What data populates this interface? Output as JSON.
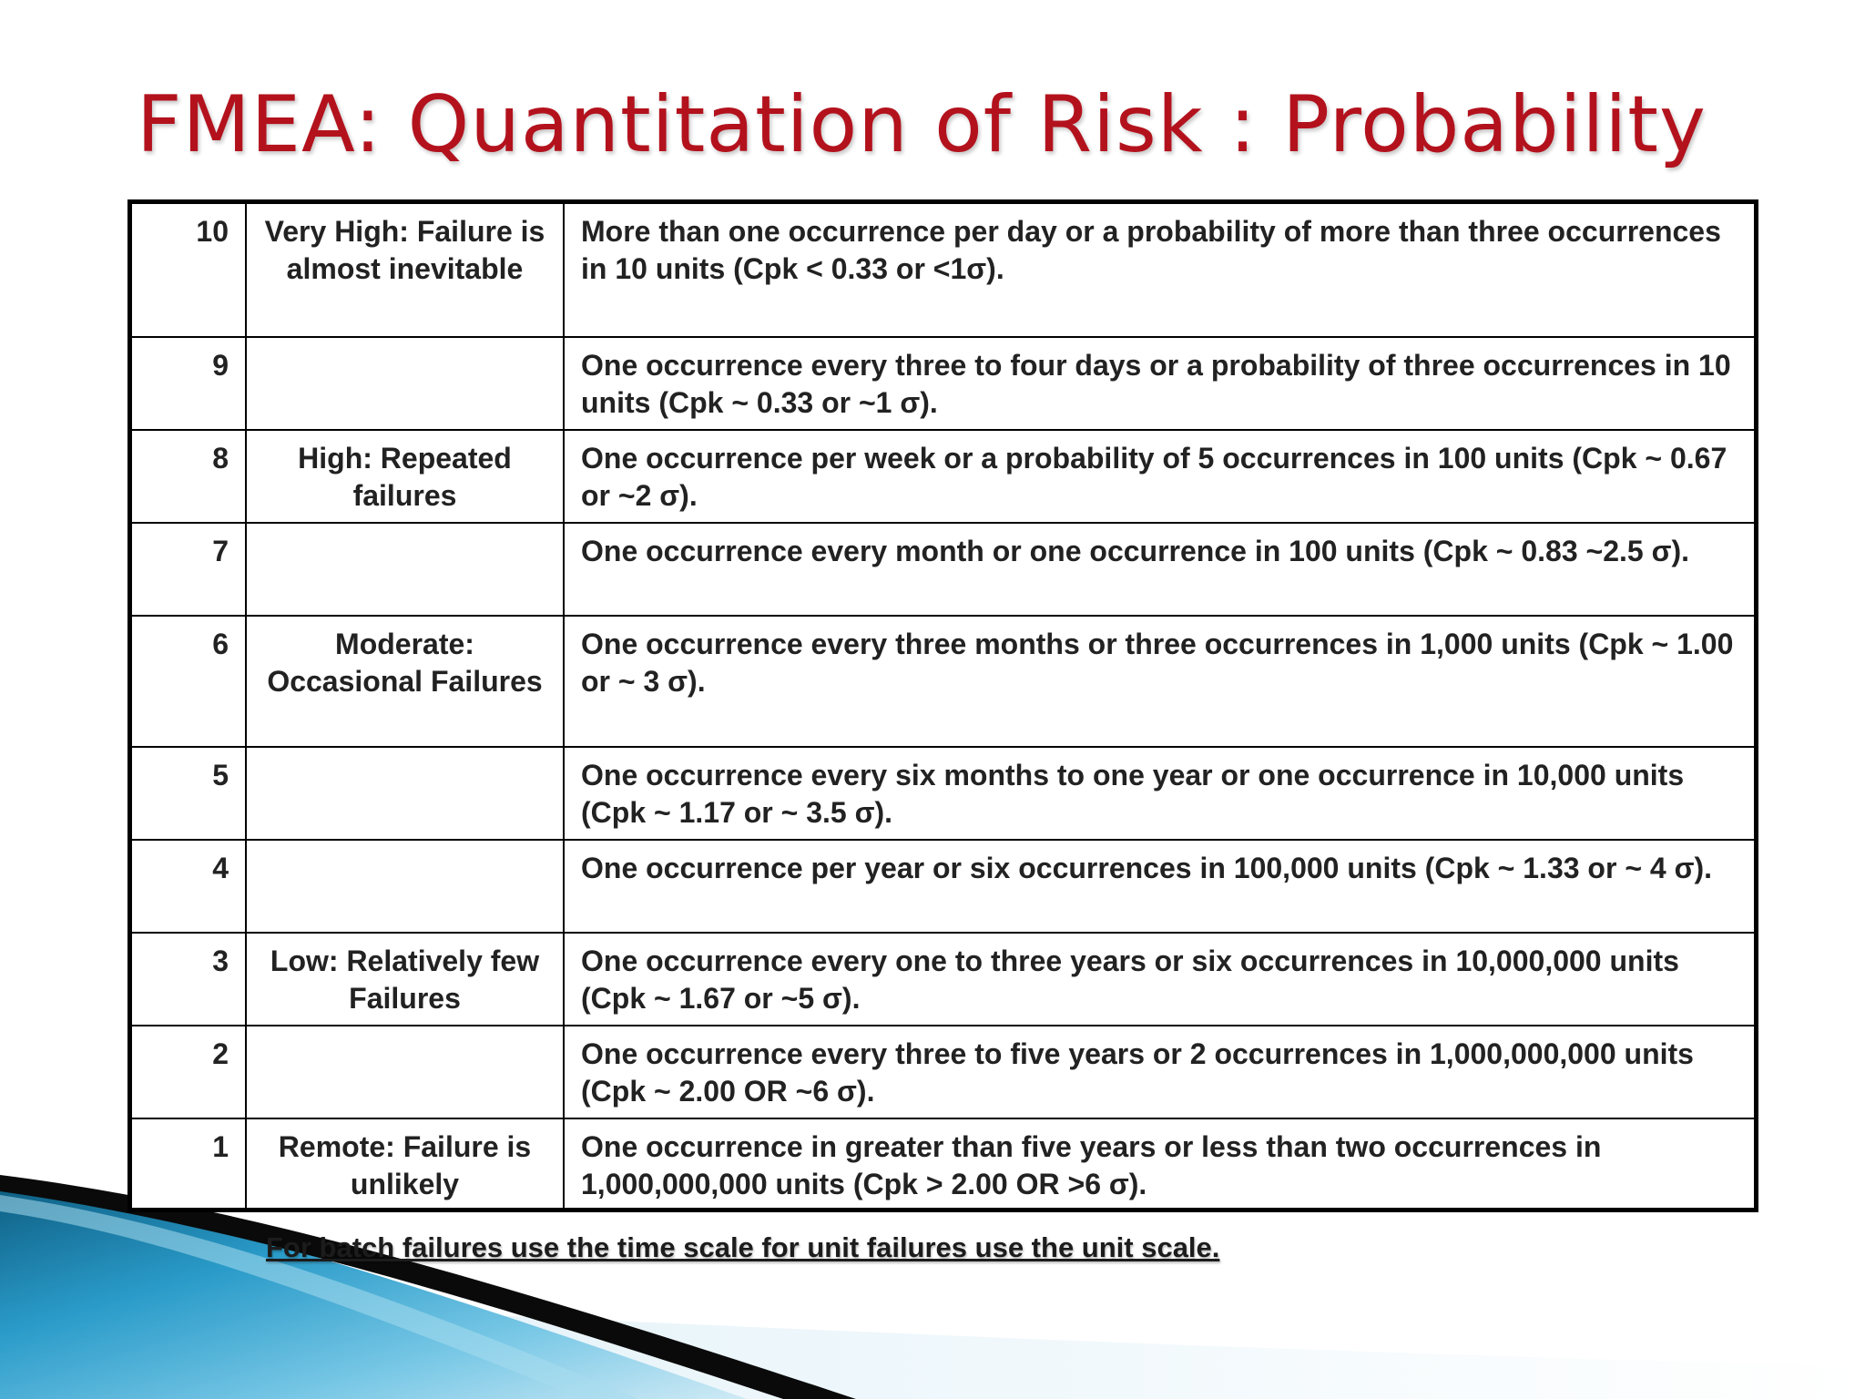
{
  "title": "FMEA: Quantitation of Risk : Probability",
  "accent_color": "#b3121d",
  "rows": [
    {
      "rank": "10",
      "category": "Very High: Failure is almost inevitable",
      "description": "More than one occurrence per day or a probability of more than three occurrences in 10 units (Cpk < 0.33 or <1σ)."
    },
    {
      "rank": "9",
      "category": "",
      "description": "One occurrence every three to four days or a probability of three occurrences in 10 units (Cpk ~ 0.33 or ~1 σ)."
    },
    {
      "rank": "8",
      "category": "High: Repeated failures",
      "description": "One occurrence per week or a probability of 5 occurrences in 100 units (Cpk ~ 0.67 or ~2 σ)."
    },
    {
      "rank": "7",
      "category": "",
      "description": "One occurrence every month or one occurrence in 100 units (Cpk ~ 0.83 ~2.5 σ)."
    },
    {
      "rank": "6",
      "category": "Moderate: Occasional Failures",
      "description": "One occurrence every three months or three occurrences in 1,000 units (Cpk ~ 1.00 or ~ 3 σ)."
    },
    {
      "rank": "5",
      "category": "",
      "description": "One occurrence every six months to one year or one occurrence in 10,000 units (Cpk ~ 1.17 or ~ 3.5 σ)."
    },
    {
      "rank": "4",
      "category": "",
      "description": "One occurrence per year or six occurrences in 100,000 units (Cpk ~ 1.33 or ~ 4 σ)."
    },
    {
      "rank": "3",
      "category": "Low: Relatively few Failures",
      "description": "One occurrence every one to three years or six occurrences in 10,000,000 units (Cpk ~ 1.67 or ~5 σ)."
    },
    {
      "rank": "2",
      "category": "",
      "description": "One occurrence every three to five years or 2 occurrences in 1,000,000,000 units (Cpk ~ 2.00 OR ~6 σ)."
    },
    {
      "rank": "1",
      "category": "Remote: Failure is unlikely",
      "description": "One occurrence in greater than five years or less than two occurrences in 1,000,000,000 units (Cpk > 2.00 OR >6 σ)."
    }
  ],
  "footnote": "For batch failures use the time scale for unit failures use the unit scale."
}
